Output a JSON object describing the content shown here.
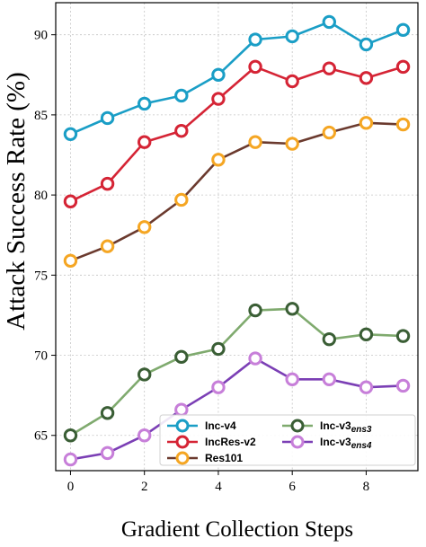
{
  "chart_data": {
    "type": "line",
    "title": "",
    "xlabel": "Gradient Collection Steps",
    "ylabel": "Attack Success Rate (%)",
    "x": [
      0,
      1,
      2,
      3,
      4,
      5,
      6,
      7,
      8,
      9
    ],
    "xlim": [
      -0.4,
      9.4
    ],
    "ylim": [
      62.8,
      92.0
    ],
    "xticks": [
      0,
      2,
      4,
      6,
      8
    ],
    "yticks": [
      65,
      70,
      75,
      80,
      85,
      90
    ],
    "grid": true,
    "legend_position": "lower-right",
    "series": [
      {
        "name": "Inc-v4",
        "name_sub": "",
        "color": "#1a9ec6",
        "values": [
          83.8,
          84.8,
          85.7,
          86.2,
          87.5,
          89.7,
          89.9,
          90.8,
          89.4,
          90.3
        ]
      },
      {
        "name": "IncRes-v2",
        "name_sub": "",
        "color": "#d52435",
        "values": [
          79.6,
          80.7,
          83.3,
          84.0,
          86.0,
          88.0,
          87.1,
          87.9,
          87.3,
          88.0
        ]
      },
      {
        "name": "Res101",
        "name_sub": "",
        "color": "#6b3a2e",
        "marker_color": "#f5a623",
        "values": [
          75.9,
          76.8,
          78.0,
          79.7,
          82.2,
          83.3,
          83.2,
          83.9,
          84.5,
          84.4
        ]
      },
      {
        "name": "Inc-v3",
        "name_sub": "ens3",
        "color": "#7faa6e",
        "marker_color": "#3a5e35",
        "values": [
          65.0,
          66.4,
          68.8,
          69.9,
          70.4,
          72.8,
          72.9,
          71.0,
          71.3,
          71.2
        ]
      },
      {
        "name": "Inc-v3",
        "name_sub": "ens4",
        "color": "#7b3fb5",
        "marker_color": "#c77fd9",
        "values": [
          63.5,
          63.9,
          65.0,
          66.6,
          68.0,
          69.8,
          68.5,
          68.5,
          68.0,
          68.1
        ]
      }
    ]
  }
}
